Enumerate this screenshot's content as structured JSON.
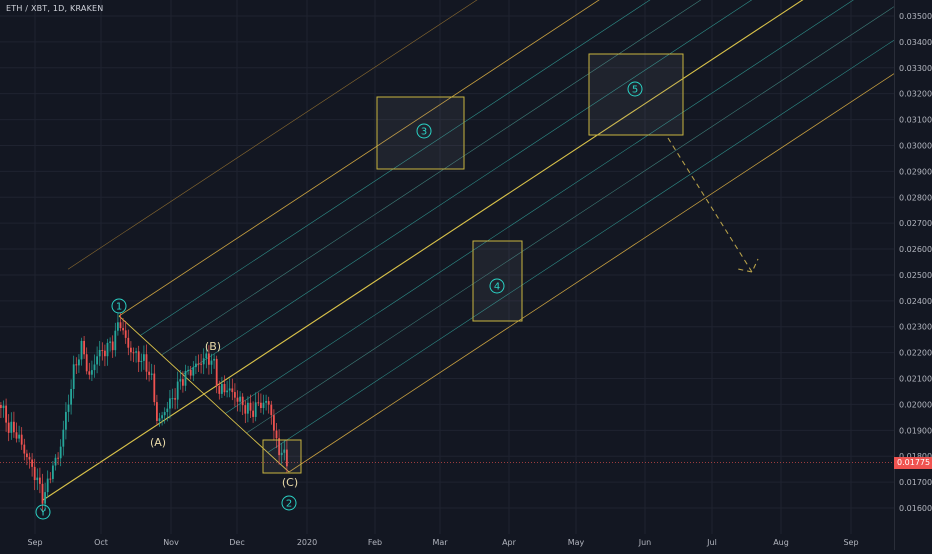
{
  "header": {
    "symbol_title": "ETH / XBT, 1D, KRAKEN"
  },
  "price_axis": {
    "labels": [
      "0.03500",
      "0.03400",
      "0.03300",
      "0.03200",
      "0.03100",
      "0.03000",
      "0.02900",
      "0.02800",
      "0.02700",
      "0.02600",
      "0.02500",
      "0.02400",
      "0.02300",
      "0.02200",
      "0.02100",
      "0.02000",
      "0.01900",
      "0.01800",
      "0.01700",
      "0.01600"
    ],
    "current_price": "0.01775",
    "current_price_color": "#ef5350"
  },
  "time_axis": {
    "labels": [
      "Sep",
      "Oct",
      "Nov",
      "Dec",
      "2020",
      "Feb",
      "Mar",
      "Apr",
      "May",
      "Jun",
      "Jul",
      "Aug",
      "Sep"
    ]
  },
  "wave_labels": {
    "one": "1",
    "two": "2",
    "three": "3",
    "four": "4",
    "five": "5",
    "y": "Y",
    "a": "(A)",
    "b": "(B)",
    "c": "(C)"
  },
  "colors": {
    "background": "#131722",
    "up_candle": "#26a69a",
    "down_candle": "#ef5350",
    "pitchfork_median": "#d9c24a",
    "pitchfork_outer": "#c8a040",
    "pitchfork_inner": "#2f8f8a",
    "target_box": "#c8b440",
    "circle_label": "#2bd2c5",
    "letter_label": "#e8d9a8"
  }
}
